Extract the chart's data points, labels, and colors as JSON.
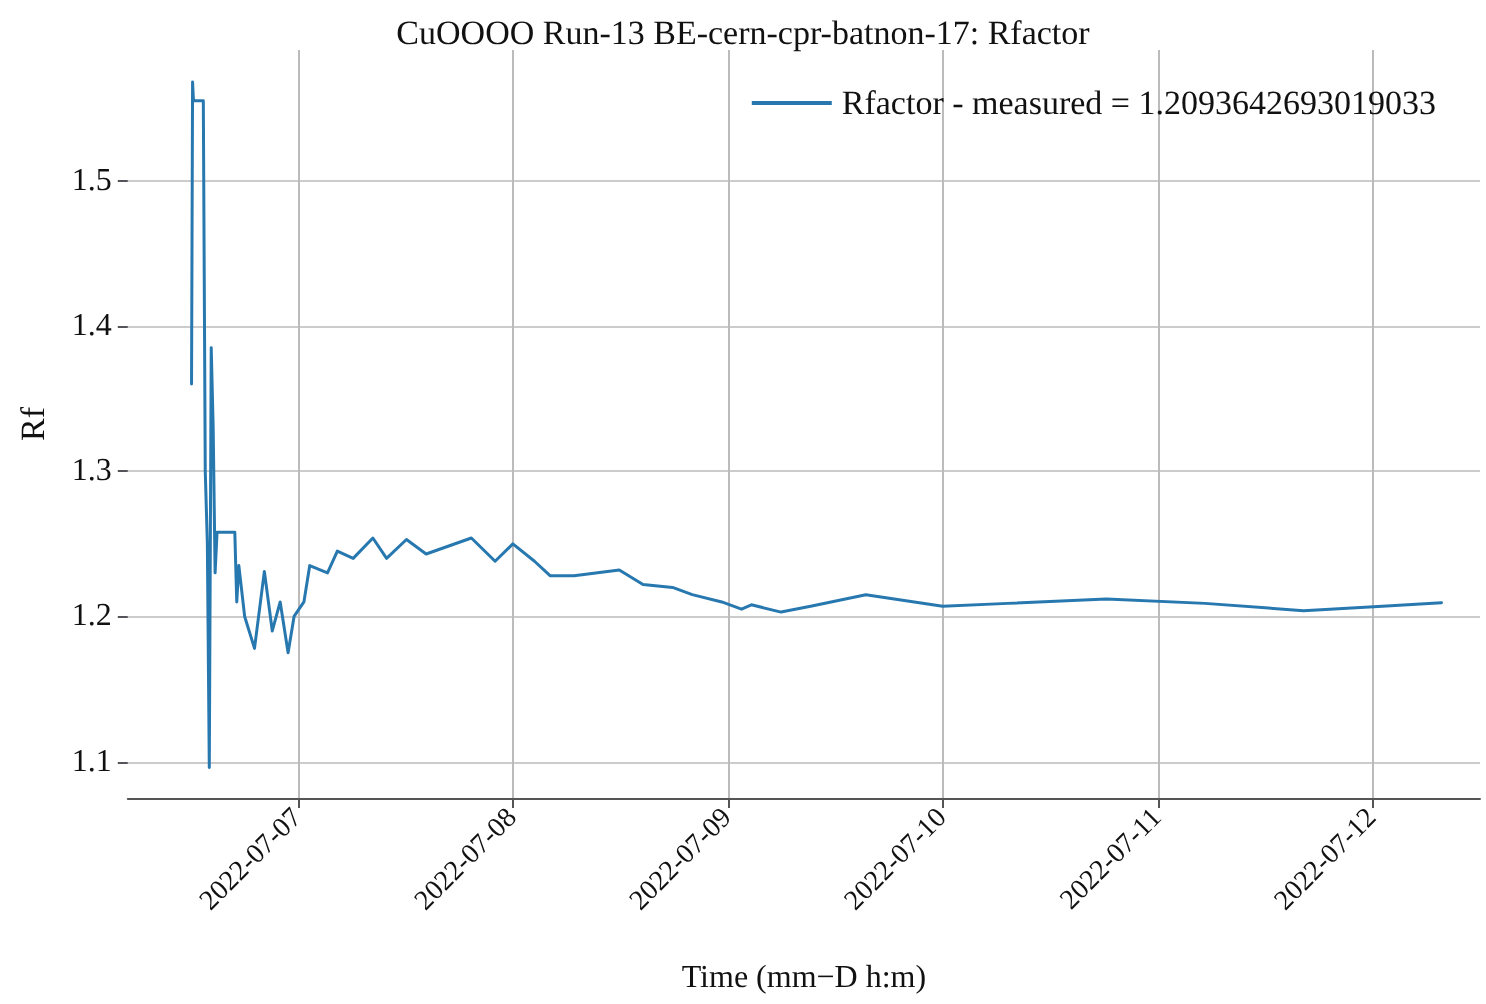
{
  "chart_data": {
    "type": "line",
    "title": "CuOOOO Run-13 BE-cern-cpr-batnon-17: Rfactor",
    "xlabel": "Time (mm−D h:m)",
    "ylabel": "Rf",
    "x": [
      "2022-07-06T12:07",
      "2022-07-06T12:14",
      "2022-07-06T12:20",
      "2022-07-06T13:26",
      "2022-07-06T13:39",
      "2022-07-06T13:53",
      "2022-07-06T14:06",
      "2022-07-06T14:19",
      "2022-07-06T14:32",
      "2022-07-06T14:45",
      "2022-07-06T14:58",
      "2022-07-06T16:57",
      "2022-07-06T17:10",
      "2022-07-06T17:24",
      "2022-07-06T18:03",
      "2022-07-06T19:09",
      "2022-07-06T20:15",
      "2022-07-06T21:08",
      "2022-07-06T22:01",
      "2022-07-06T22:54",
      "2022-07-06T23:34",
      "2022-07-07T00:40",
      "2022-07-07T01:19",
      "2022-07-07T03:18",
      "2022-07-07T04:24",
      "2022-07-07T06:10",
      "2022-07-07T08:22",
      "2022-07-07T09:54",
      "2022-07-07T12:07",
      "2022-07-07T14:19",
      "2022-07-07T19:22",
      "2022-07-07T22:01",
      "2022-07-08T00:00",
      "2022-07-08T02:25",
      "2022-07-08T04:11",
      "2022-07-08T06:50",
      "2022-07-08T11:53",
      "2022-07-08T14:32",
      "2022-07-08T17:50",
      "2022-07-08T20:02",
      "2022-07-08T23:20",
      "2022-07-09T01:32",
      "2022-07-09T02:38",
      "2022-07-09T05:57",
      "2022-07-09T09:15",
      "2022-07-09T15:25",
      "2022-07-10T00:00",
      "2022-07-10T07:16",
      "2022-07-10T18:16",
      "2022-07-11T05:17",
      "2022-07-11T16:17",
      "2022-07-12T01:06",
      "2022-07-12T07:42"
    ],
    "series": [
      {
        "name": "Rfactor - measured = 1.2093642693019033",
        "color": "#2878b0",
        "values": [
          1.36,
          1.568,
          1.555,
          1.555,
          1.3,
          1.25,
          1.096,
          1.385,
          1.33,
          1.23,
          1.258,
          1.258,
          1.21,
          1.235,
          1.2,
          1.178,
          1.231,
          1.19,
          1.21,
          1.175,
          1.2,
          1.21,
          1.235,
          1.23,
          1.245,
          1.24,
          1.254,
          1.24,
          1.253,
          1.243,
          1.254,
          1.238,
          1.25,
          1.238,
          1.228,
          1.228,
          1.232,
          1.222,
          1.22,
          1.215,
          1.21,
          1.205,
          1.208,
          1.203,
          1.207,
          1.215,
          1.207,
          1.209,
          1.212,
          1.209,
          1.204,
          1.207,
          1.2094
        ]
      }
    ],
    "xlim": [
      "2022-07-06T05:00",
      "2022-07-12T12:00"
    ],
    "xticks": [
      "2022-07-07",
      "2022-07-08",
      "2022-07-09",
      "2022-07-10",
      "2022-07-11",
      "2022-07-12"
    ],
    "ylim": [
      1.075,
      1.59
    ],
    "yticks": [
      1.1,
      1.2,
      1.3,
      1.4,
      1.5
    ],
    "grid": true,
    "legend": "top right",
    "marker": "none",
    "line_style": "solid"
  }
}
